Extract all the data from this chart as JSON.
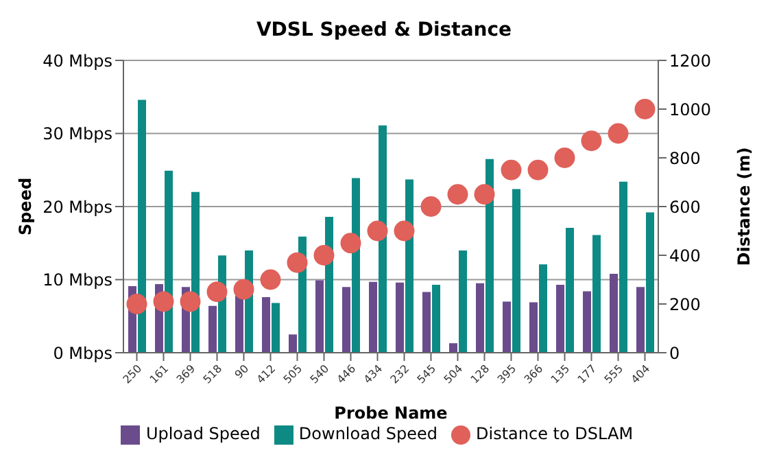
{
  "chart_data": {
    "type": "bar",
    "title": "VDSL Speed & Distance",
    "xlabel": "Probe Name",
    "ylabel": "Speed",
    "y2label": "Distance (m)",
    "categories": [
      "250",
      "161",
      "369",
      "518",
      "90",
      "412",
      "505",
      "540",
      "446",
      "434",
      "232",
      "545",
      "504",
      "128",
      "395",
      "366",
      "135",
      "177",
      "555",
      "404"
    ],
    "series": [
      {
        "name": "Upload Speed",
        "color": "#6a4c8c",
        "values": [
          9.1,
          9.4,
          9.0,
          6.4,
          7.8,
          7.6,
          2.5,
          9.9,
          9.0,
          9.7,
          9.6,
          8.3,
          1.3,
          9.5,
          7.0,
          6.9,
          9.3,
          8.4,
          10.8,
          9.0
        ]
      },
      {
        "name": "Download Speed",
        "color": "#0e8a85",
        "values": [
          34.6,
          24.9,
          22.0,
          13.3,
          14.0,
          6.8,
          15.9,
          18.6,
          23.9,
          31.1,
          23.7,
          9.3,
          14.0,
          26.5,
          22.4,
          12.1,
          17.1,
          16.1,
          23.4,
          19.2
        ]
      },
      {
        "name": "Distance to DSLAM",
        "type": "scatter",
        "axis": "y2",
        "color": "#e0605a",
        "marker": "circle",
        "values": [
          200,
          210,
          210,
          250,
          260,
          300,
          370,
          400,
          450,
          500,
          500,
          600,
          650,
          650,
          750,
          750,
          800,
          870,
          900,
          1000
        ]
      }
    ],
    "ylim": [
      0,
      40
    ],
    "yticks": [
      {
        "value": 0,
        "label": "0 Mbps"
      },
      {
        "value": 10,
        "label": "10 Mbps"
      },
      {
        "value": 20,
        "label": "20 Mbps"
      },
      {
        "value": 30,
        "label": "30 Mbps"
      },
      {
        "value": 40,
        "label": "40 Mbps"
      }
    ],
    "y2lim": [
      0,
      1200
    ],
    "y2ticks": [
      0,
      200,
      400,
      600,
      800,
      1000,
      1200
    ],
    "grid": "y",
    "legend": "bottom"
  }
}
